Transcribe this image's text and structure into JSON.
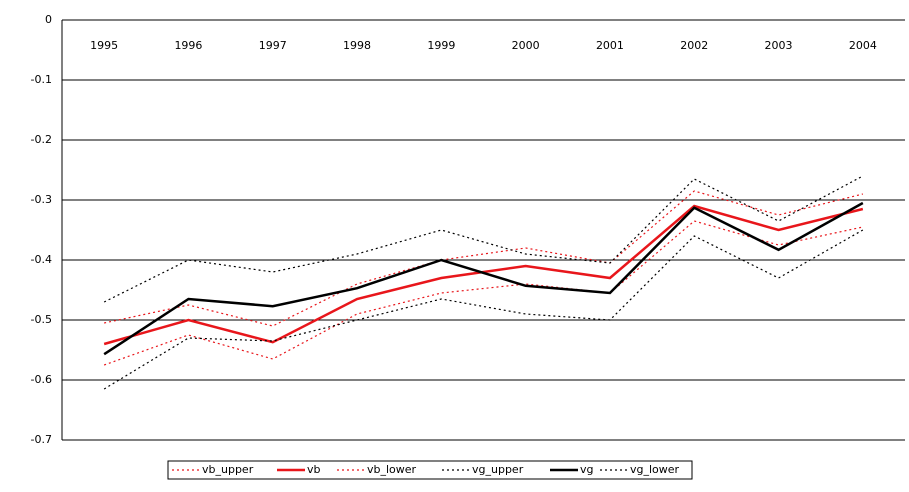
{
  "chart_data": {
    "type": "line",
    "categories": [
      "1995",
      "1996",
      "1997",
      "1998",
      "1999",
      "2000",
      "2001",
      "2002",
      "2003",
      "2004"
    ],
    "series": [
      {
        "name": "vb_upper",
        "color": "#e8161b",
        "dashed": true,
        "values": [
          -0.505,
          -0.475,
          -0.51,
          -0.44,
          -0.4,
          -0.38,
          -0.405,
          -0.285,
          -0.325,
          -0.29
        ]
      },
      {
        "name": "vb",
        "color": "#e8161b",
        "dashed": false,
        "values": [
          -0.54,
          -0.5,
          -0.537,
          -0.465,
          -0.43,
          -0.41,
          -0.43,
          -0.31,
          -0.35,
          -0.315
        ]
      },
      {
        "name": "vb_lower",
        "color": "#e8161b",
        "dashed": true,
        "values": [
          -0.575,
          -0.525,
          -0.565,
          -0.49,
          -0.455,
          -0.44,
          -0.455,
          -0.335,
          -0.375,
          -0.345
        ]
      },
      {
        "name": "vg_upper",
        "color": "#000000",
        "dashed": true,
        "values": [
          -0.47,
          -0.4,
          -0.42,
          -0.39,
          -0.35,
          -0.39,
          -0.405,
          -0.265,
          -0.335,
          -0.26
        ]
      },
      {
        "name": "vg",
        "color": "#000000",
        "dashed": false,
        "values": [
          -0.557,
          -0.465,
          -0.477,
          -0.447,
          -0.4,
          -0.443,
          -0.455,
          -0.313,
          -0.383,
          -0.305
        ]
      },
      {
        "name": "vg_lower",
        "color": "#000000",
        "dashed": true,
        "values": [
          -0.615,
          -0.53,
          -0.535,
          -0.5,
          -0.465,
          -0.49,
          -0.5,
          -0.36,
          -0.43,
          -0.35
        ]
      }
    ],
    "ylim": [
      -0.7,
      0
    ],
    "yticks": [
      0,
      -0.1,
      -0.2,
      -0.3,
      -0.4,
      -0.5,
      -0.6,
      -0.7
    ],
    "grid": true,
    "legend": "bottom"
  }
}
